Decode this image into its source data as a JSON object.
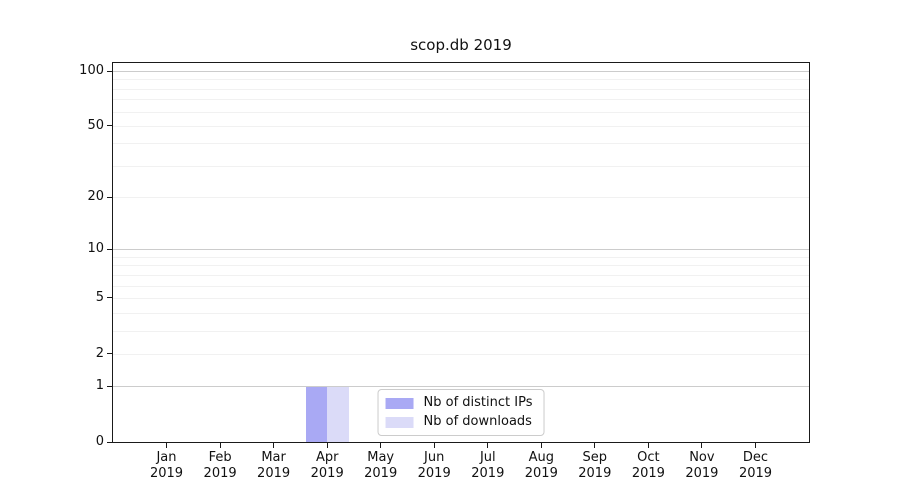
{
  "chart_data": {
    "type": "bar",
    "title": "scop.db 2019",
    "categories": [
      "Jan",
      "Feb",
      "Mar",
      "Apr",
      "May",
      "Jun",
      "Jul",
      "Aug",
      "Sep",
      "Oct",
      "Nov",
      "Dec"
    ],
    "tick_year": "2019",
    "series": [
      {
        "name": "Nb of distinct IPs",
        "color": "#a9a9f4",
        "values": [
          0,
          0,
          0,
          1,
          0,
          0,
          0,
          0,
          0,
          0,
          0,
          0
        ]
      },
      {
        "name": "Nb of downloads",
        "color": "#dbdbf8",
        "values": [
          0,
          0,
          0,
          1,
          0,
          0,
          0,
          0,
          0,
          0,
          0,
          0
        ]
      }
    ],
    "y_axis": {
      "scale": "log1p",
      "ymin": 0,
      "ymax": 110.5,
      "tick_values": [
        0,
        1,
        2,
        5,
        10,
        20,
        50,
        100
      ],
      "major_grid_values": [
        1,
        10,
        100
      ],
      "minor_grid_values": [
        2,
        3,
        4,
        5,
        6,
        7,
        8,
        9,
        20,
        30,
        40,
        50,
        60,
        70,
        80,
        90
      ]
    },
    "legend": {
      "position": "lower center"
    },
    "colors": {
      "grid_major": "#cccccc",
      "grid_minor": "#f1f1f1",
      "axis": "#1a1a1a",
      "text": "#111111",
      "background": "#ffffff"
    }
  }
}
